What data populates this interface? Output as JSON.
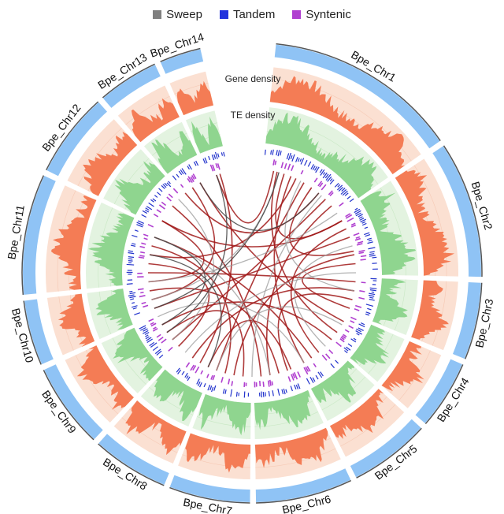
{
  "legend": [
    {
      "label": "Sweep",
      "color": "#808080"
    },
    {
      "label": "Tandem",
      "color": "#2233dd"
    },
    {
      "label": "Syntenic",
      "color": "#b040d0"
    }
  ],
  "track_labels": {
    "gene_density": "Gene density",
    "te_density": "TE density"
  },
  "colors": {
    "chrom_band": "#8fc3f5",
    "chrom_outline": "#555555",
    "gene_fill": "#f47c55",
    "gene_bg": "#fbe0d2",
    "te_fill": "#8fd58f",
    "te_bg": "#e3f3e0",
    "tandem": "#2233cc",
    "syntenic": "#b040d0",
    "link_red": "#a01818",
    "link_gray": "#9a9a9a",
    "link_dark": "#444444"
  },
  "chromosomes": [
    {
      "name": "Bpe_Chr1",
      "start_deg": 6,
      "end_deg": 55
    },
    {
      "name": "Bpe_Chr2",
      "start_deg": 56.5,
      "end_deg": 91
    },
    {
      "name": "Bpe_Chr3",
      "start_deg": 92.5,
      "end_deg": 112
    },
    {
      "name": "Bpe_Chr4",
      "start_deg": 113.5,
      "end_deg": 131
    },
    {
      "name": "Bpe_Chr5",
      "start_deg": 132.5,
      "end_deg": 153
    },
    {
      "name": "Bpe_Chr6",
      "start_deg": 154.5,
      "end_deg": 179
    },
    {
      "name": "Bpe_Chr7",
      "start_deg": 180.5,
      "end_deg": 201
    },
    {
      "name": "Bpe_Chr8",
      "start_deg": 202.5,
      "end_deg": 222
    },
    {
      "name": "Bpe_Chr9",
      "start_deg": 223.5,
      "end_deg": 245
    },
    {
      "name": "Bpe_Chr10",
      "start_deg": 246.5,
      "end_deg": 263
    },
    {
      "name": "Bpe_Chr11",
      "start_deg": 264.5,
      "end_deg": 295
    },
    {
      "name": "Bpe_Chr12",
      "start_deg": 296.5,
      "end_deg": 318
    },
    {
      "name": "Bpe_Chr13",
      "start_deg": 319.5,
      "end_deg": 335
    },
    {
      "name": "Bpe_Chr14",
      "start_deg": 336.5,
      "end_deg": 347
    }
  ],
  "links": [
    {
      "from": 14,
      "to": 125,
      "type": "red"
    },
    {
      "from": 18,
      "to": 60,
      "type": "red"
    },
    {
      "from": 22,
      "to": 150,
      "type": "red"
    },
    {
      "from": 25,
      "to": 280,
      "type": "red"
    },
    {
      "from": 30,
      "to": 200,
      "type": "red"
    },
    {
      "from": 35,
      "to": 78,
      "type": "red"
    },
    {
      "from": 40,
      "to": 320,
      "type": "red"
    },
    {
      "from": 45,
      "to": 230,
      "type": "red"
    },
    {
      "from": 50,
      "to": 170,
      "type": "red"
    },
    {
      "from": 60,
      "to": 300,
      "type": "red"
    },
    {
      "from": 65,
      "to": 140,
      "type": "red"
    },
    {
      "from": 70,
      "to": 250,
      "type": "red"
    },
    {
      "from": 80,
      "to": 190,
      "type": "red"
    },
    {
      "from": 85,
      "to": 110,
      "type": "red"
    },
    {
      "from": 95,
      "to": 270,
      "type": "red"
    },
    {
      "from": 100,
      "to": 215,
      "type": "red"
    },
    {
      "from": 105,
      "to": 160,
      "type": "red"
    },
    {
      "from": 118,
      "to": 330,
      "type": "red"
    },
    {
      "from": 130,
      "to": 240,
      "type": "red"
    },
    {
      "from": 145,
      "to": 290,
      "type": "red"
    },
    {
      "from": 158,
      "to": 205,
      "type": "red"
    },
    {
      "from": 165,
      "to": 260,
      "type": "red"
    },
    {
      "from": 175,
      "to": 310,
      "type": "red"
    },
    {
      "from": 185,
      "to": 235,
      "type": "red"
    },
    {
      "from": 195,
      "to": 285,
      "type": "red"
    },
    {
      "from": 210,
      "to": 342,
      "type": "red"
    },
    {
      "from": 225,
      "to": 275,
      "type": "red"
    },
    {
      "from": 255,
      "to": 325,
      "type": "red"
    },
    {
      "from": 265,
      "to": 300,
      "type": "red"
    },
    {
      "from": 12,
      "to": 340,
      "type": "red"
    },
    {
      "from": 15,
      "to": 255,
      "type": "gray"
    },
    {
      "from": 28,
      "to": 100,
      "type": "gray"
    },
    {
      "from": 42,
      "to": 180,
      "type": "gray"
    },
    {
      "from": 55,
      "to": 265,
      "type": "gray"
    },
    {
      "from": 75,
      "to": 135,
      "type": "gray"
    },
    {
      "from": 90,
      "to": 220,
      "type": "gray"
    },
    {
      "from": 120,
      "to": 200,
      "type": "gray"
    },
    {
      "from": 150,
      "to": 245,
      "type": "gray"
    },
    {
      "from": 170,
      "to": 290,
      "type": "gray"
    },
    {
      "from": 230,
      "to": 315,
      "type": "gray"
    },
    {
      "from": 240,
      "to": 290,
      "type": "dark"
    },
    {
      "from": 235,
      "to": 340,
      "type": "dark"
    },
    {
      "from": 250,
      "to": 15,
      "type": "dark"
    },
    {
      "from": 280,
      "to": 205,
      "type": "dark"
    },
    {
      "from": 330,
      "to": 40,
      "type": "dark"
    }
  ]
}
